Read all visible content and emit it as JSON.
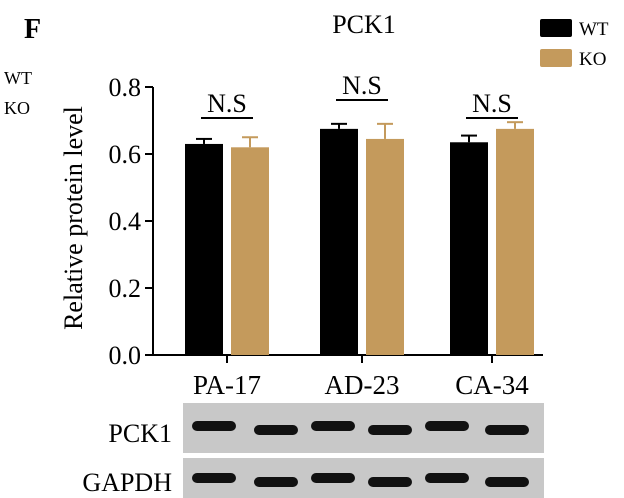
{
  "panel_label": "F",
  "partial_legend": [
    "WT",
    "KO"
  ],
  "chart_data": {
    "type": "bar",
    "title": "PCK1",
    "ylabel": "Relative protein level",
    "xlabel": "",
    "categories": [
      "PA-17",
      "AD-23",
      "CA-34"
    ],
    "ylim": [
      0,
      0.8
    ],
    "yticks": [
      "0.0",
      "0.2",
      "0.4",
      "0.6",
      "0.8"
    ],
    "series": [
      {
        "name": "WT",
        "color": "#000000",
        "values": [
          0.63,
          0.675,
          0.635
        ],
        "errors": [
          0.015,
          0.015,
          0.02
        ]
      },
      {
        "name": "KO",
        "color": "#c49a5c",
        "values": [
          0.62,
          0.645,
          0.675
        ],
        "errors": [
          0.03,
          0.045,
          0.02
        ]
      }
    ],
    "significance": [
      "N.S",
      "N.S",
      "N.S"
    ],
    "legend_position": "top-right"
  },
  "blot": {
    "rows": [
      "PCK1",
      "GAPDH"
    ],
    "lanes": 6,
    "background": "#c8c8c8"
  }
}
